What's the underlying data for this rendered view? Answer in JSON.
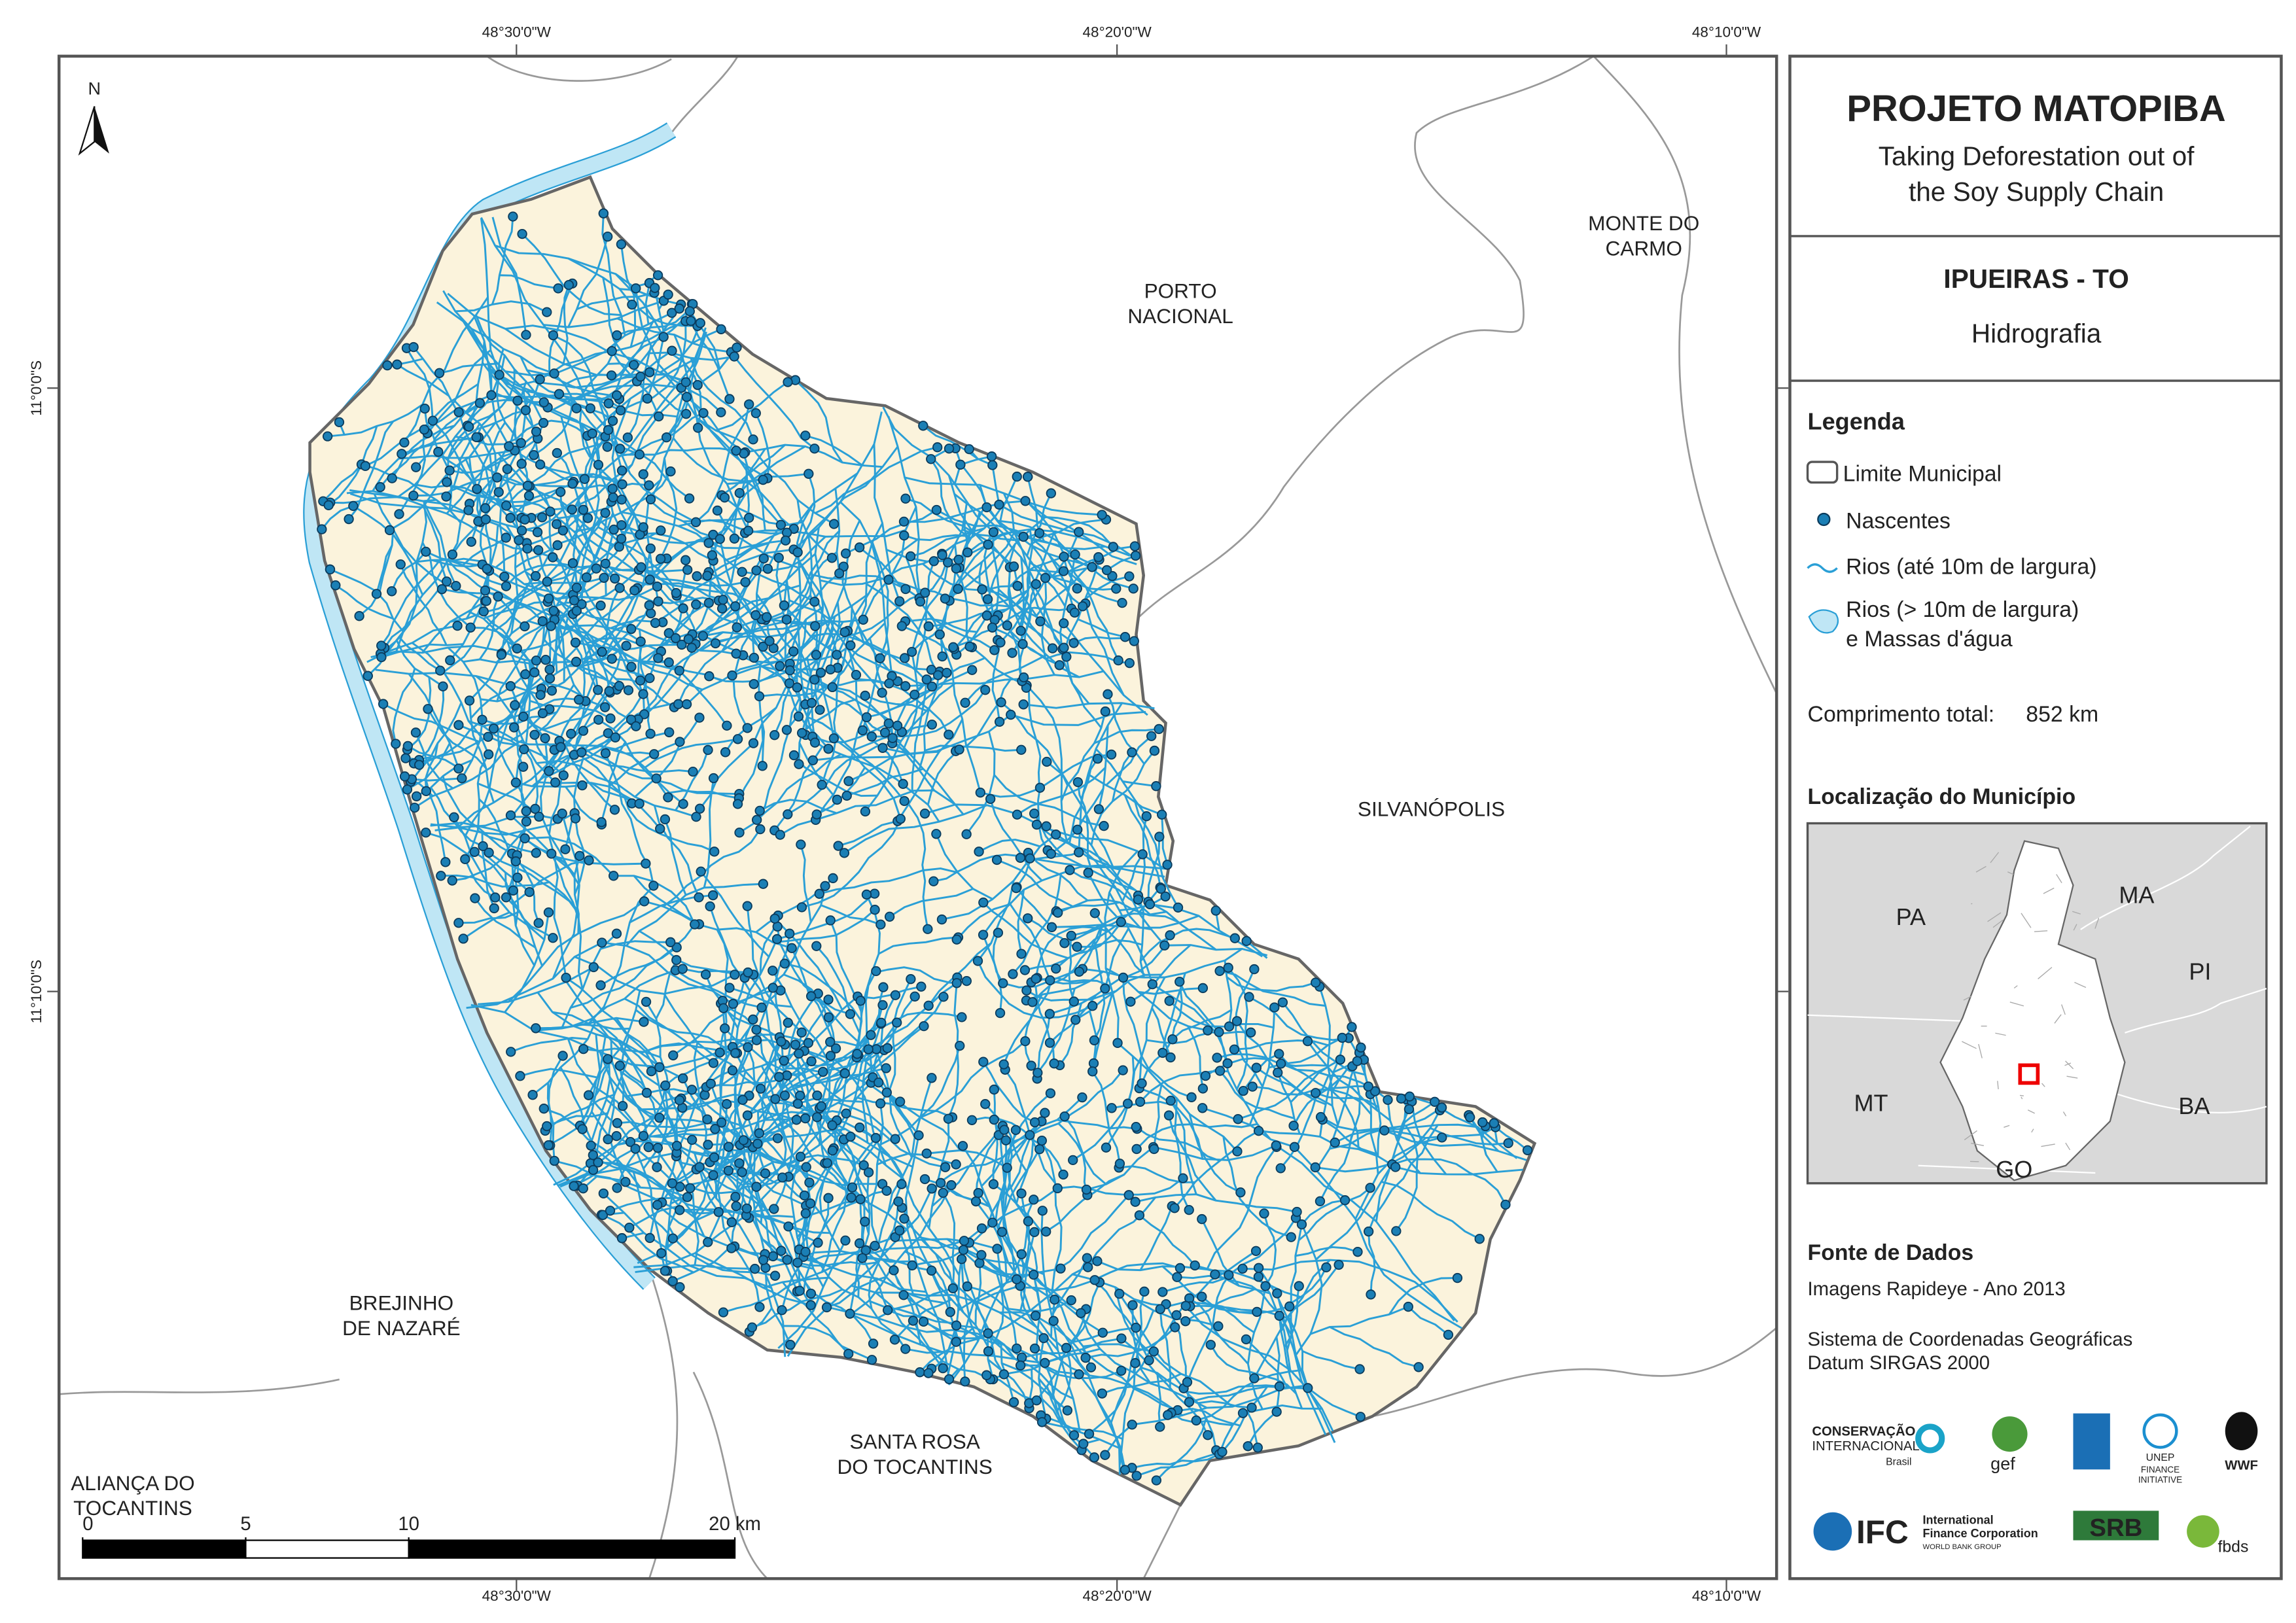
{
  "map": {
    "coordinates": {
      "top": [
        "48°30'0\"W",
        "48°20'0\"W",
        "48°10'0\"W"
      ],
      "bottom": [
        "48°30'0\"W",
        "48°20'0\"W",
        "48°10'0\"W"
      ],
      "left": [
        "11°0'0\"S",
        "11°10'0\"S"
      ]
    },
    "north_arrow": "N",
    "place_labels": [
      {
        "lines": [
          "PORTO",
          "NACIONAL"
        ]
      },
      {
        "lines": [
          "MONTE DO",
          "CARMO"
        ]
      },
      {
        "lines": [
          "SILVANÓPOLIS"
        ]
      },
      {
        "lines": [
          "BREJINHO",
          "DE NAZARÉ"
        ]
      },
      {
        "lines": [
          "SANTA ROSA",
          "DO TOCANTINS"
        ]
      },
      {
        "lines": [
          "ALIANÇA DO",
          "TOCANTINS"
        ]
      }
    ],
    "scale_bar": {
      "ticks": [
        0,
        5,
        10,
        {
          "value": 20,
          "label": "20 km"
        }
      ]
    }
  },
  "panel": {
    "title": "PROJETO MATOPIBA",
    "subtitle": [
      "Taking Deforestation out of",
      "the Soy Supply Chain"
    ],
    "municipality": "IPUEIRAS - TO",
    "theme": "Hidrografia",
    "legend": {
      "title": "Legenda",
      "items": [
        {
          "label": [
            "Limite Municipal"
          ]
        },
        {
          "label": [
            "Nascentes"
          ]
        },
        {
          "label": [
            "Rios (até 10m de largura)"
          ]
        },
        {
          "label": [
            "Rios (> 10m de largura)",
            "e Massas d'água"
          ]
        }
      ]
    },
    "total_length": {
      "label": "Comprimento total:",
      "value": "852 km"
    },
    "location": {
      "title": "Localização do Município",
      "states": [
        "PA",
        "MA",
        "PI",
        "MT",
        "BA",
        "GO"
      ]
    },
    "sources": {
      "title": "Fonte de Dados",
      "lines": [
        "Imagens Rapideye - Ano 2013",
        "Sistema de Coordenadas Geográficas",
        "Datum SIRGAS 2000"
      ]
    },
    "logos": [
      "CONSERVAÇÃO",
      "INTERNACIONAL",
      "Brasil",
      "gef",
      "UNEP",
      "FINANCE",
      "INITIATIVE",
      "WWF",
      "IFC",
      "International",
      "Finance Corporation",
      "WORLD BANK GROUP",
      "SRB",
      "fbds"
    ]
  }
}
